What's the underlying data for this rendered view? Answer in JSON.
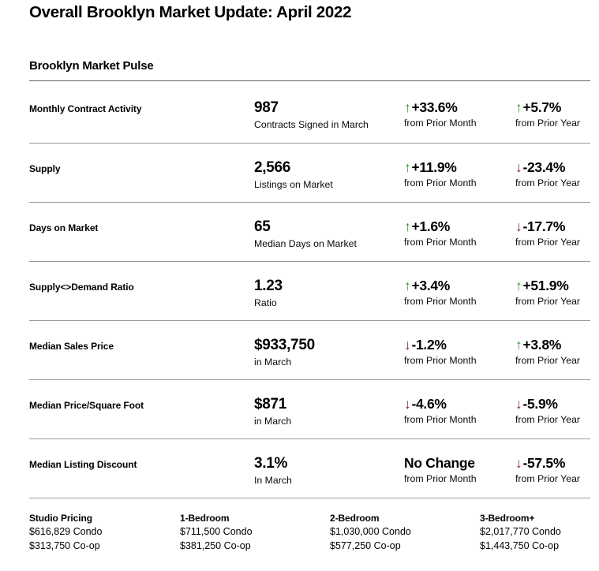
{
  "page": {
    "title": "Overall Brooklyn Market Update: April 2022",
    "section_title": "Brooklyn Market Pulse"
  },
  "colors": {
    "up": "#3a9a37",
    "down": "#8a1f36"
  },
  "icons": {
    "up_arrow": "↑",
    "down_arrow": "↓"
  },
  "rows": [
    {
      "label": "Monthly Contract Activity",
      "value": "987",
      "value_sub": "Contracts Signed in March",
      "month": {
        "dir": "up",
        "text": "+33.6%",
        "sub": "from Prior Month"
      },
      "year": {
        "dir": "up",
        "text": "+5.7%",
        "sub": "from Prior Year"
      }
    },
    {
      "label": "Supply",
      "value": "2,566",
      "value_sub": "Listings on Market",
      "month": {
        "dir": "up",
        "text": "+11.9%",
        "sub": "from Prior Month"
      },
      "year": {
        "dir": "down",
        "text": "-23.4%",
        "sub": "from Prior Year"
      }
    },
    {
      "label": "Days on Market",
      "value": "65",
      "value_sub": "Median Days on Market",
      "month": {
        "dir": "up",
        "text": "+1.6%",
        "sub": "from Prior Month"
      },
      "year": {
        "dir": "down",
        "text": "-17.7%",
        "sub": "from Prior Year"
      }
    },
    {
      "label": "Supply<>Demand Ratio",
      "value": "1.23",
      "value_sub": "Ratio",
      "month": {
        "dir": "up",
        "text": "+3.4%",
        "sub": "from Prior Month"
      },
      "year": {
        "dir": "up",
        "text": "+51.9%",
        "sub": "from Prior Year"
      }
    },
    {
      "label": "Median Sales Price",
      "value": "$933,750",
      "value_sub": "in March",
      "month": {
        "dir": "down",
        "text": "-1.2%",
        "sub": "from Prior Month"
      },
      "year": {
        "dir": "up",
        "text": "+3.8%",
        "sub": "from Prior Year"
      }
    },
    {
      "label": "Median Price/Square Foot",
      "value": "$871",
      "value_sub": "in March",
      "month": {
        "dir": "down",
        "text": "-4.6%",
        "sub": "from Prior Month"
      },
      "year": {
        "dir": "down",
        "text": "-5.9%",
        "sub": "from Prior Year"
      }
    },
    {
      "label": "Median Listing Discount",
      "value": "3.1%",
      "value_sub": "In March",
      "month": {
        "dir": "none",
        "text": "No Change",
        "sub": "from Prior Month"
      },
      "year": {
        "dir": "down",
        "text": "-57.5%",
        "sub": "from Prior Year"
      }
    }
  ],
  "pricing": {
    "columns": [
      {
        "header": "Studio Pricing",
        "condo": "$616,829 Condo",
        "coop": "$313,750 Co-op"
      },
      {
        "header": "1-Bedroom",
        "condo": "$711,500 Condo",
        "coop": "$381,250 Co-op"
      },
      {
        "header": "2-Bedroom",
        "condo": "$1,030,000 Condo",
        "coop": "$577,250 Co-op"
      },
      {
        "header": "3-Bedroom+",
        "condo": "$2,017,770 Condo",
        "coop": "$1,443,750 Co-op"
      }
    ]
  }
}
